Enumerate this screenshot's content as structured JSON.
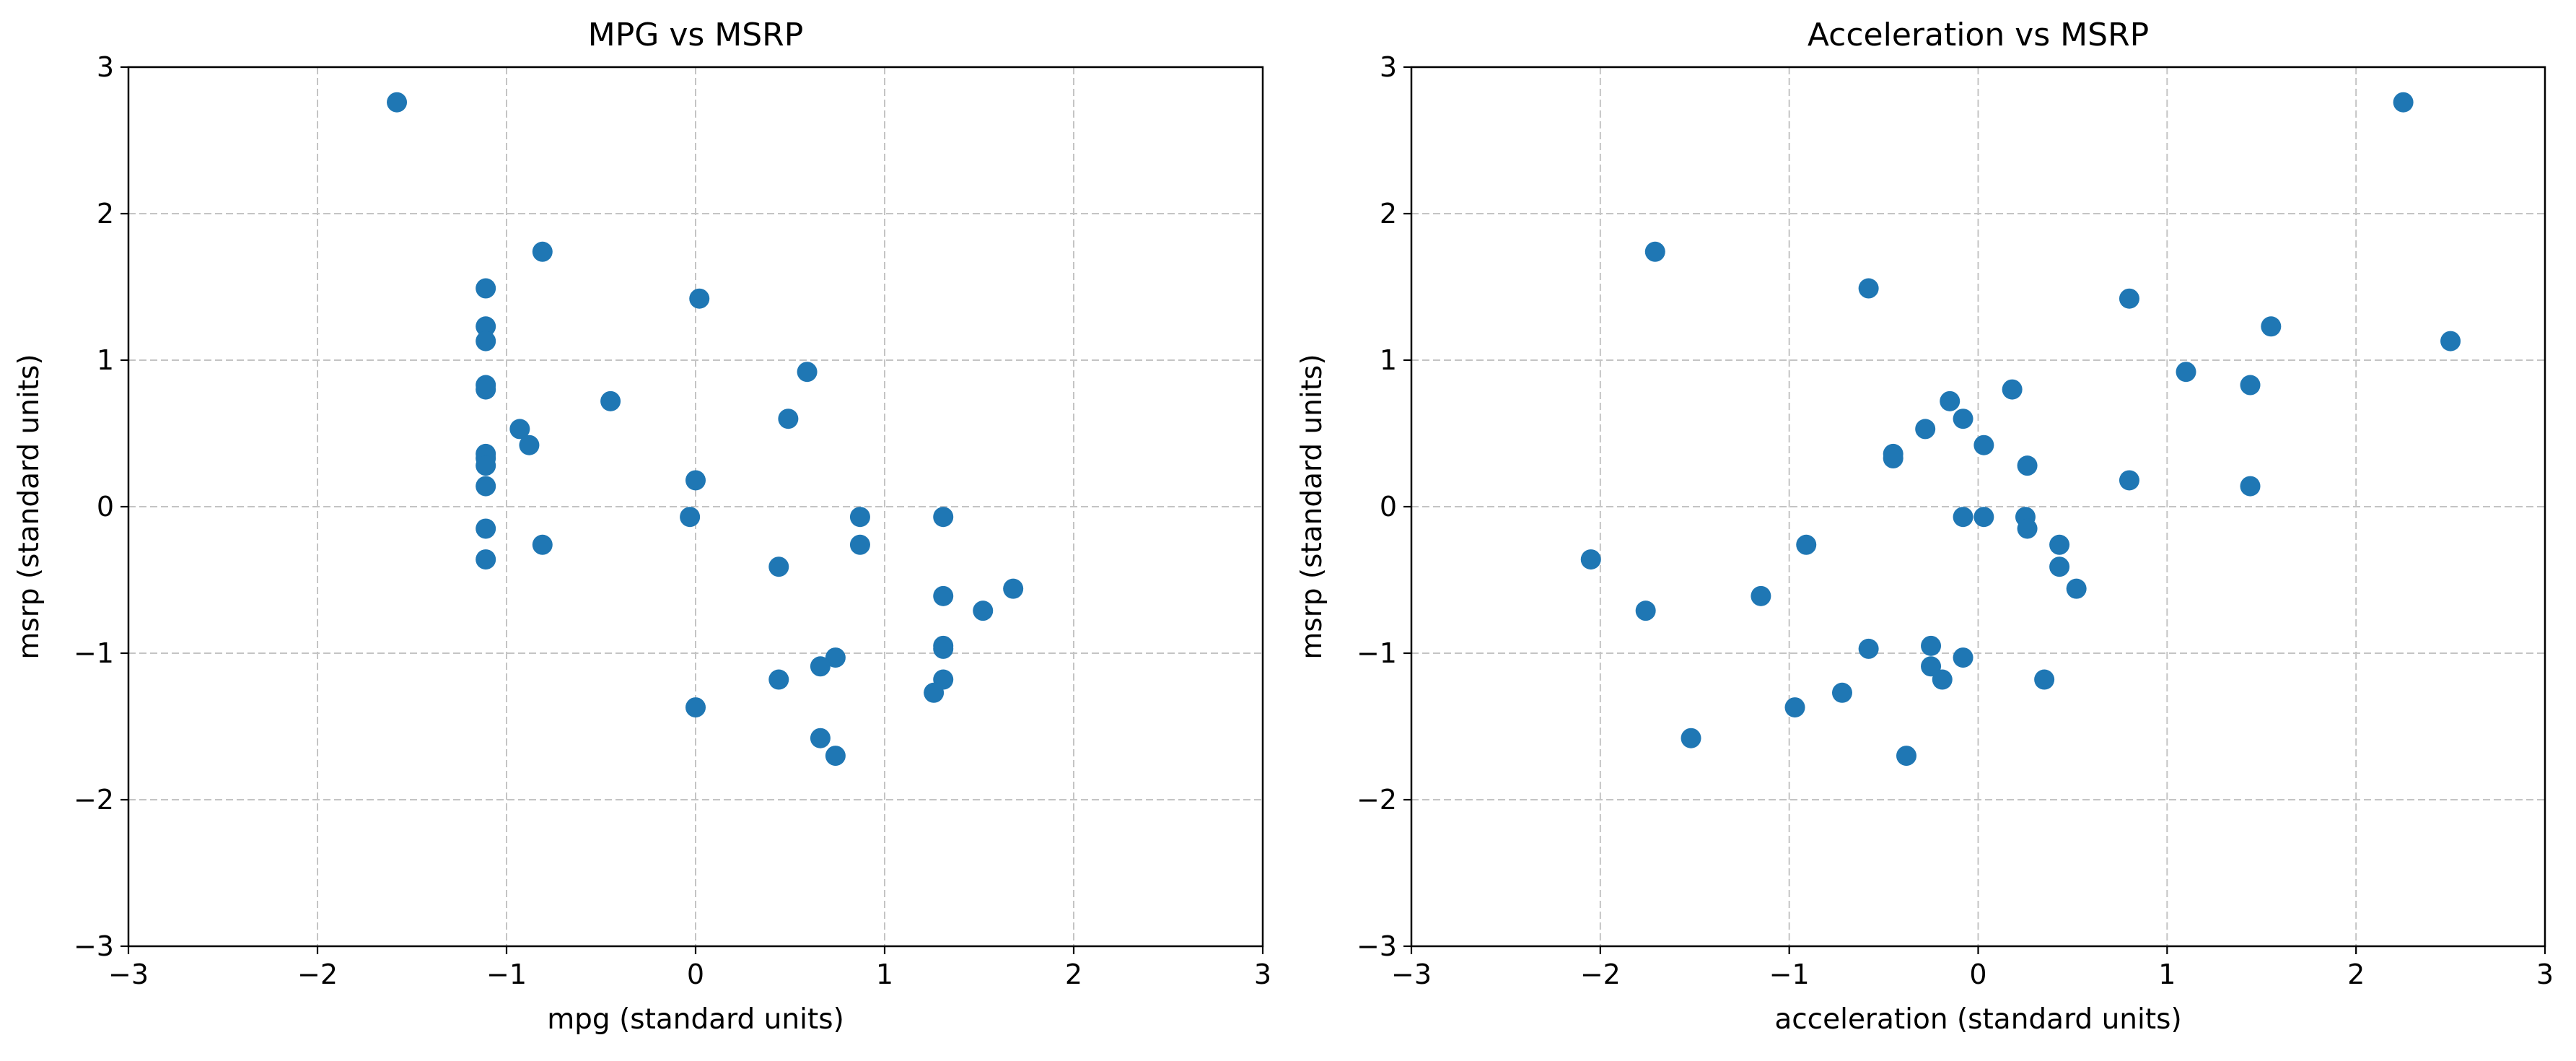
{
  "chart_data": [
    {
      "type": "scatter",
      "title": "MPG vs MSRP",
      "xlabel": "mpg (standard units)",
      "ylabel": "msrp (standard units)",
      "xlim": [
        -3,
        3
      ],
      "ylim": [
        -3,
        3
      ],
      "xticks": [
        -3,
        -2,
        -1,
        0,
        1,
        2,
        3
      ],
      "yticks": [
        -3,
        -2,
        -1,
        0,
        1,
        2,
        3
      ],
      "xtick_labels": [
        "−3",
        "−2",
        "−1",
        "0",
        "1",
        "2",
        "3"
      ],
      "ytick_labels": [
        "−3",
        "−2",
        "−1",
        "0",
        "1",
        "2",
        "3"
      ],
      "grid": true,
      "series": [
        {
          "color": "#1f77b4",
          "points": [
            [
              -1.58,
              2.76
            ],
            [
              -0.81,
              1.74
            ],
            [
              0.02,
              1.42
            ],
            [
              -1.11,
              1.49
            ],
            [
              -1.11,
              1.23
            ],
            [
              -1.11,
              1.13
            ],
            [
              -1.11,
              0.83
            ],
            [
              -1.11,
              0.8
            ],
            [
              -0.45,
              0.72
            ],
            [
              0.59,
              0.92
            ],
            [
              0.49,
              0.6
            ],
            [
              -0.93,
              0.53
            ],
            [
              -0.88,
              0.42
            ],
            [
              -1.11,
              0.36
            ],
            [
              -1.11,
              0.33
            ],
            [
              -1.11,
              0.28
            ],
            [
              -1.11,
              0.14
            ],
            [
              0.0,
              0.18
            ],
            [
              -0.03,
              -0.07
            ],
            [
              -1.11,
              -0.15
            ],
            [
              -1.11,
              -0.36
            ],
            [
              -0.81,
              -0.26
            ],
            [
              0.87,
              -0.07
            ],
            [
              0.87,
              -0.26
            ],
            [
              1.31,
              -0.07
            ],
            [
              0.44,
              -0.41
            ],
            [
              1.31,
              -0.61
            ],
            [
              1.68,
              -0.56
            ],
            [
              1.52,
              -0.71
            ],
            [
              1.31,
              -0.95
            ],
            [
              1.31,
              -0.97
            ],
            [
              0.74,
              -1.03
            ],
            [
              0.66,
              -1.09
            ],
            [
              0.44,
              -1.18
            ],
            [
              1.31,
              -1.18
            ],
            [
              1.26,
              -1.27
            ],
            [
              0.0,
              -1.37
            ],
            [
              0.66,
              -1.58
            ],
            [
              0.74,
              -1.7
            ]
          ]
        }
      ]
    },
    {
      "type": "scatter",
      "title": "Acceleration vs MSRP",
      "xlabel": "acceleration (standard units)",
      "ylabel": "msrp (standard units)",
      "xlim": [
        -3,
        3
      ],
      "ylim": [
        -3,
        3
      ],
      "xticks": [
        -3,
        -2,
        -1,
        0,
        1,
        2,
        3
      ],
      "yticks": [
        -3,
        -2,
        -1,
        0,
        1,
        2,
        3
      ],
      "xtick_labels": [
        "−3",
        "−2",
        "−1",
        "0",
        "1",
        "2",
        "3"
      ],
      "ytick_labels": [
        "−3",
        "−2",
        "−1",
        "0",
        "1",
        "2",
        "3"
      ],
      "grid": true,
      "series": [
        {
          "color": "#1f77b4",
          "points": [
            [
              2.25,
              2.76
            ],
            [
              -1.71,
              1.74
            ],
            [
              -0.58,
              1.49
            ],
            [
              0.8,
              1.42
            ],
            [
              1.55,
              1.23
            ],
            [
              2.5,
              1.13
            ],
            [
              1.1,
              0.92
            ],
            [
              1.44,
              0.83
            ],
            [
              0.18,
              0.8
            ],
            [
              -0.15,
              0.72
            ],
            [
              -0.08,
              0.6
            ],
            [
              -0.28,
              0.53
            ],
            [
              0.03,
              0.42
            ],
            [
              -0.45,
              0.36
            ],
            [
              -0.45,
              0.33
            ],
            [
              0.26,
              0.28
            ],
            [
              0.8,
              0.18
            ],
            [
              1.44,
              0.14
            ],
            [
              -0.08,
              -0.07
            ],
            [
              0.03,
              -0.07
            ],
            [
              0.25,
              -0.07
            ],
            [
              0.26,
              -0.15
            ],
            [
              -0.91,
              -0.26
            ],
            [
              0.43,
              -0.26
            ],
            [
              -2.05,
              -0.36
            ],
            [
              0.43,
              -0.41
            ],
            [
              0.52,
              -0.56
            ],
            [
              -1.15,
              -0.61
            ],
            [
              -1.76,
              -0.71
            ],
            [
              -0.25,
              -0.95
            ],
            [
              -0.58,
              -0.97
            ],
            [
              -0.08,
              -1.03
            ],
            [
              -0.25,
              -1.09
            ],
            [
              -0.19,
              -1.18
            ],
            [
              0.35,
              -1.18
            ],
            [
              -0.72,
              -1.27
            ],
            [
              -0.97,
              -1.37
            ],
            [
              -1.52,
              -1.58
            ],
            [
              -0.38,
              -1.7
            ]
          ]
        }
      ]
    }
  ]
}
